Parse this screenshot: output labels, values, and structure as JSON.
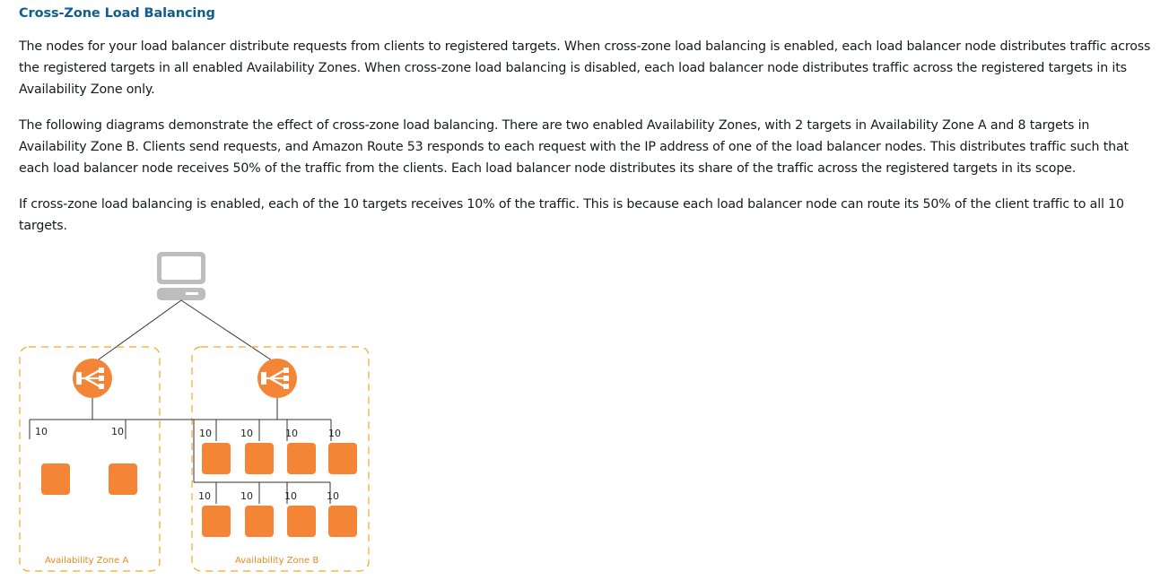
{
  "section": {
    "title": "Cross-Zone Load Balancing"
  },
  "paragraphs": {
    "p1": "The nodes for your load balancer distribute requests from clients to registered targets. When cross-zone load balancing is enabled, each load balancer node distributes traffic across the registered targets in all enabled Availability Zones. When cross-zone load balancing is disabled, each load balancer node distributes traffic across the registered targets in its Availability Zone only.",
    "p2": "The following diagrams demonstrate the effect of cross-zone load balancing. There are two enabled Availability Zones, with 2 targets in Availability Zone A and 8 targets in Availability Zone B. Clients send requests, and Amazon Route 53 responds to each request with the IP address of one of the load balancer nodes. This distributes traffic such that each load balancer node receives 50% of the traffic from the clients. Each load balancer node distributes its share of the traffic across the registered targets in its scope.",
    "p3": "If cross-zone load balancing is enabled, each of the 10 targets receives 10% of the traffic. This is because each load balancer node can route its 50% of the client traffic to all 10 targets."
  },
  "diagram": {
    "zone_a": {
      "label": "Availability Zone A",
      "targets": [
        "10",
        "10"
      ]
    },
    "zone_b": {
      "label": "Availability Zone B",
      "row1": [
        "10",
        "10",
        "10",
        "10"
      ],
      "row2": [
        "10",
        "10",
        "10",
        "10"
      ]
    },
    "colors": {
      "orange": "#f58536",
      "zone_border": "#f5a623",
      "zone_label": "#e8881e",
      "client": "#bdbdbd",
      "line": "#333333"
    }
  }
}
